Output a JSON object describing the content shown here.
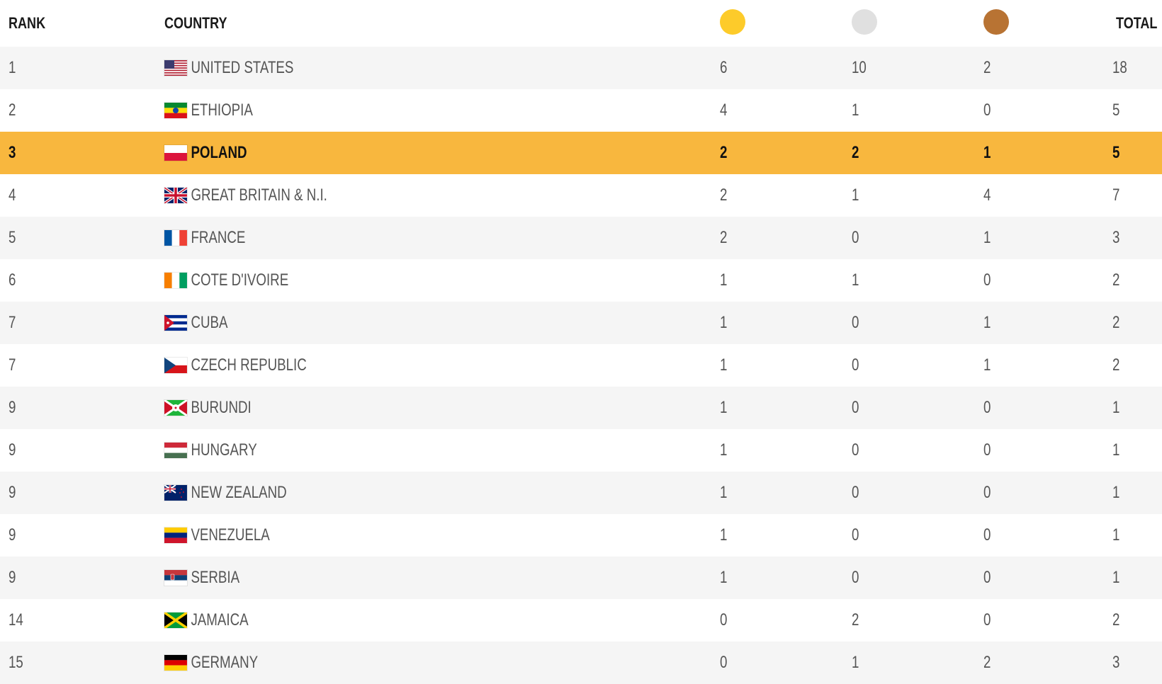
{
  "header": {
    "rank_label": "RANK",
    "country_label": "COUNTRY",
    "total_label": "TOTAL",
    "medal_colors": {
      "gold": "#fdcb2a",
      "silver": "#e0e0e0",
      "bronze": "#b87333"
    }
  },
  "highlight_color": "#f8b73e",
  "rows": [
    {
      "rank": "1",
      "country": "UNITED STATES",
      "flag": "usa-flag-icon",
      "gold": "6",
      "silver": "10",
      "bronze": "2",
      "total": "18"
    },
    {
      "rank": "2",
      "country": "ETHIOPIA",
      "flag": "ethiopia-flag-icon",
      "gold": "4",
      "silver": "1",
      "bronze": "0",
      "total": "5"
    },
    {
      "rank": "3",
      "country": "POLAND",
      "flag": "poland-flag-icon",
      "gold": "2",
      "silver": "2",
      "bronze": "1",
      "total": "5",
      "highlighted": true
    },
    {
      "rank": "4",
      "country": "GREAT BRITAIN & N.I.",
      "flag": "uk-flag-icon",
      "gold": "2",
      "silver": "1",
      "bronze": "4",
      "total": "7"
    },
    {
      "rank": "5",
      "country": "FRANCE",
      "flag": "france-flag-icon",
      "gold": "2",
      "silver": "0",
      "bronze": "1",
      "total": "3"
    },
    {
      "rank": "6",
      "country": "COTE D'IVOIRE",
      "flag": "ivory-coast-flag-icon",
      "gold": "1",
      "silver": "1",
      "bronze": "0",
      "total": "2"
    },
    {
      "rank": "7",
      "country": "CUBA",
      "flag": "cuba-flag-icon",
      "gold": "1",
      "silver": "0",
      "bronze": "1",
      "total": "2"
    },
    {
      "rank": "7",
      "country": "CZECH REPUBLIC",
      "flag": "czech-flag-icon",
      "gold": "1",
      "silver": "0",
      "bronze": "1",
      "total": "2"
    },
    {
      "rank": "9",
      "country": "BURUNDI",
      "flag": "burundi-flag-icon",
      "gold": "1",
      "silver": "0",
      "bronze": "0",
      "total": "1"
    },
    {
      "rank": "9",
      "country": "HUNGARY",
      "flag": "hungary-flag-icon",
      "gold": "1",
      "silver": "0",
      "bronze": "0",
      "total": "1"
    },
    {
      "rank": "9",
      "country": "NEW ZEALAND",
      "flag": "new-zealand-flag-icon",
      "gold": "1",
      "silver": "0",
      "bronze": "0",
      "total": "1"
    },
    {
      "rank": "9",
      "country": "VENEZUELA",
      "flag": "venezuela-flag-icon",
      "gold": "1",
      "silver": "0",
      "bronze": "0",
      "total": "1"
    },
    {
      "rank": "9",
      "country": "SERBIA",
      "flag": "serbia-flag-icon",
      "gold": "1",
      "silver": "0",
      "bronze": "0",
      "total": "1"
    },
    {
      "rank": "14",
      "country": "JAMAICA",
      "flag": "jamaica-flag-icon",
      "gold": "0",
      "silver": "2",
      "bronze": "0",
      "total": "2"
    },
    {
      "rank": "15",
      "country": "GERMANY",
      "flag": "germany-flag-icon",
      "gold": "0",
      "silver": "1",
      "bronze": "2",
      "total": "3"
    }
  ]
}
